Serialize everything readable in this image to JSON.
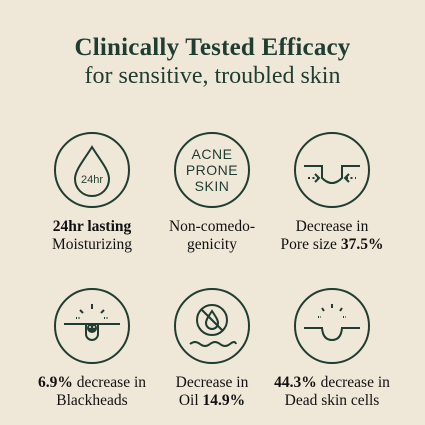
{
  "header": {
    "title": "Clinically Tested Efficacy",
    "subtitle": "for sensitive, troubled skin"
  },
  "items": [
    {
      "icon": "drop-24hr-icon",
      "icon_text": "24hr",
      "line1": "24hr lasting",
      "line2": "Moisturizing"
    },
    {
      "icon": "acne-prone-skin-icon",
      "icon_text": [
        "ACNE",
        "PRONE",
        "SKIN"
      ],
      "line1": "Non-comedo-",
      "line2": "genicity"
    },
    {
      "icon": "pore-icon",
      "line1": "Decrease in",
      "line2_prefix": "Pore size ",
      "line2_bold": "37.5%"
    },
    {
      "icon": "blackhead-icon",
      "line1_bold": "6.9%",
      "line1_suffix": " decrease in",
      "line2": "Blackheads"
    },
    {
      "icon": "no-oil-icon",
      "line1": "Decrease in",
      "line2_prefix": "Oil ",
      "line2_bold": "14.9%"
    },
    {
      "icon": "dead-skin-cells-icon",
      "line1_bold": "44.3%",
      "line1_suffix": " decrease in",
      "line2": "Dead skin cells"
    }
  ],
  "colors": {
    "background": "#efe7d8",
    "accent": "#1f3d30"
  }
}
